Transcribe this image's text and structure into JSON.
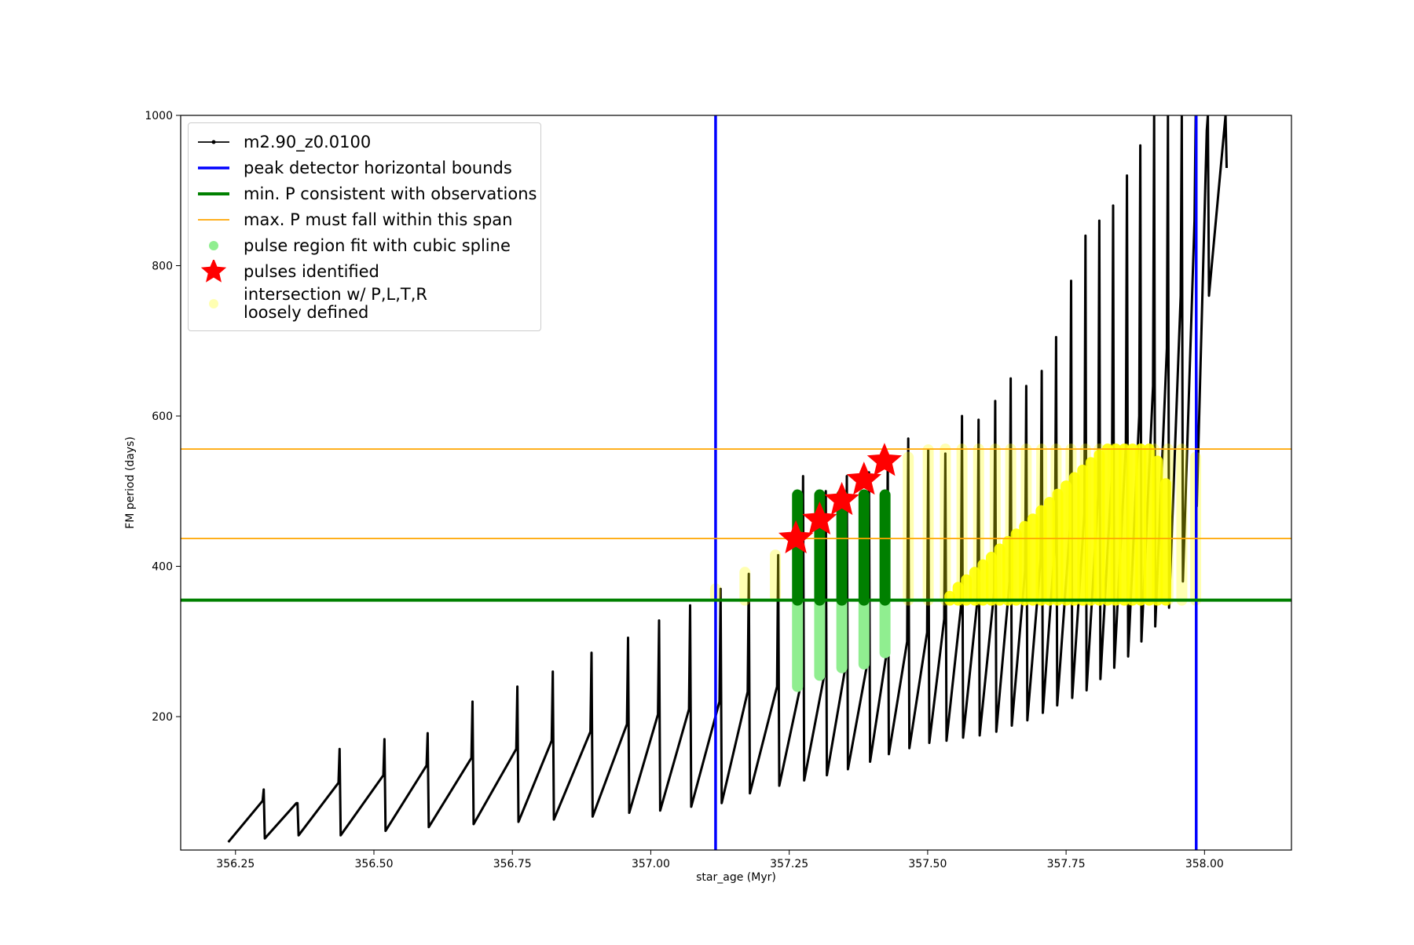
{
  "chart_data": {
    "type": "line",
    "xlabel": "star_age (Myr)",
    "ylabel": "FM period (days)",
    "xlim": [
      356.151,
      358.157
    ],
    "ylim": [
      22.5,
      1000
    ],
    "xticks": [
      356.25,
      {
        "value": 356.5,
        "label": "356.50"
      },
      356.75,
      {
        "value": 357,
        "label": "357.00"
      },
      357.25,
      {
        "value": 357.5,
        "label": "357.50"
      },
      357.75,
      {
        "value": 358,
        "label": "358.00"
      }
    ],
    "yticks": [
      200,
      400,
      600,
      800,
      1000
    ],
    "legend": "upper left",
    "series": [
      {
        "name": "m2.90_z0.0100",
        "kind": "line",
        "color": "#000000",
        "linewidth": 3,
        "x": [
          356.237,
          356.299,
          356.301,
          356.303,
          356.36,
          356.362,
          356.364,
          356.436,
          356.438,
          356.44,
          356.517,
          356.519,
          356.521,
          356.595,
          356.597,
          356.599,
          356.676,
          356.678,
          356.68,
          356.757,
          356.759,
          356.761,
          356.821,
          356.823,
          356.825,
          356.891,
          356.893,
          356.895,
          356.957,
          356.959,
          356.961,
          357.013,
          357.015,
          357.017,
          357.069,
          357.071,
          357.073,
          357.124,
          357.126,
          357.128,
          357.175,
          357.177,
          357.179,
          357.228,
          357.23,
          357.232,
          357.273,
          357.275,
          357.277,
          357.314,
          357.316,
          357.318,
          357.352,
          357.354,
          357.356,
          357.392,
          357.394,
          357.396,
          357.426,
          357.428,
          357.43,
          357.463,
          357.465,
          357.467,
          357.499,
          357.501,
          357.503,
          357.53,
          357.532,
          357.534,
          357.56,
          357.562,
          357.564,
          357.59,
          357.592,
          357.594,
          357.62,
          357.622,
          357.624,
          357.648,
          357.65,
          357.652,
          357.676,
          357.678,
          357.68,
          357.704,
          357.706,
          357.708,
          357.73,
          357.732,
          357.734,
          357.757,
          357.759,
          357.761,
          357.783,
          357.785,
          357.787,
          357.808,
          357.81,
          357.812,
          357.833,
          357.835,
          357.837,
          357.858,
          357.86,
          357.862,
          357.882,
          357.884,
          357.886,
          357.907,
          357.909,
          357.911,
          357.932,
          357.934,
          357.936,
          357.957,
          357.959,
          357.961,
          357.982,
          357.984,
          357.986,
          358.004,
          358.006,
          358.008,
          358.038,
          358.04
        ],
        "values": [
          33,
          88,
          103,
          38,
          85,
          85,
          42,
          112,
          157,
          42,
          122,
          170,
          48,
          135,
          178,
          53,
          145,
          220,
          57,
          157,
          240,
          60,
          168,
          260,
          63,
          180,
          285,
          67,
          190,
          305,
          72,
          203,
          328,
          75,
          210,
          348,
          80,
          220,
          370,
          85,
          233,
          390,
          98,
          240,
          415,
          108,
          250,
          520,
          115,
          258,
          500,
          122,
          268,
          520,
          130,
          275,
          525,
          140,
          285,
          545,
          150,
          300,
          570,
          158,
          312,
          555,
          165,
          330,
          550,
          168,
          345,
          600,
          172,
          355,
          595,
          175,
          365,
          620,
          180,
          380,
          650,
          188,
          395,
          640,
          195,
          410,
          660,
          205,
          430,
          705,
          215,
          450,
          780,
          225,
          470,
          840,
          235,
          495,
          860,
          250,
          525,
          880,
          265,
          560,
          920,
          280,
          600,
          960,
          300,
          640,
          1000,
          320,
          690,
          1000,
          345,
          760,
          1000,
          380,
          860,
          1000,
          480,
          980,
          1000,
          760,
          1000,
          930
        ]
      },
      {
        "name": "peak detector horizontal bounds",
        "kind": "vline",
        "color": "#0000ff",
        "linewidth": 3.5,
        "values": [
          357.117,
          357.985
        ]
      },
      {
        "name": "min. P consistent with observations",
        "kind": "hline",
        "color": "#008000",
        "linewidth": 4,
        "values": [
          355
        ]
      },
      {
        "name": "max. P must fall within this span",
        "kind": "hline",
        "color": "#ffa500",
        "linewidth": 1.8,
        "values": [
          437,
          556
        ]
      },
      {
        "name": "pulse region fit with cubic spline",
        "kind": "columns",
        "color": "#90ee90",
        "opacity": 1,
        "x": [
          357.265,
          357.305,
          357.345,
          357.385,
          357.423
        ],
        "low": [
          240,
          255,
          265,
          270,
          285
        ],
        "high": [
          355,
          355,
          355,
          355,
          355
        ]
      },
      {
        "kind": "columns",
        "color": "#008000",
        "opacity": 1,
        "x": [
          357.265,
          357.305,
          357.345,
          357.385,
          357.423
        ],
        "low": [
          355,
          355,
          355,
          355,
          355
        ],
        "high": [
          495,
          495,
          495,
          495,
          495
        ]
      },
      {
        "name": "pulses identified",
        "kind": "star",
        "color": "#ff0000",
        "x": [
          357.262,
          357.305,
          357.345,
          357.385,
          357.422
        ],
        "values": [
          437,
          462,
          488,
          515,
          540
        ]
      },
      {
        "name": "intersection w/ P,L,T,R\nloosely defined",
        "kind": "columns",
        "color": "#ffff00",
        "opacity": 0.3,
        "x": [
          357.117,
          357.17,
          357.225,
          357.465,
          357.501,
          357.532,
          357.562,
          357.592,
          357.622,
          357.65,
          357.678,
          357.706,
          357.732,
          357.759,
          357.785,
          357.81,
          357.835,
          357.86,
          357.884,
          357.909,
          357.934,
          357.959,
          357.984
        ],
        "low": [
          360,
          355,
          360,
          355,
          355,
          355,
          355,
          355,
          355,
          355,
          355,
          355,
          355,
          355,
          355,
          355,
          355,
          355,
          355,
          355,
          355,
          355,
          355
        ],
        "high": [
          370,
          392,
          415,
          545,
          555,
          556,
          556,
          556,
          556,
          556,
          556,
          556,
          556,
          556,
          556,
          556,
          556,
          556,
          556,
          556,
          556,
          556,
          545
        ]
      },
      {
        "kind": "columns",
        "color": "#ffff00",
        "opacity": 0.9,
        "x": [
          357.54,
          357.555,
          357.57,
          357.585,
          357.6,
          357.615,
          357.63,
          357.645,
          357.66,
          357.675,
          357.69,
          357.705,
          357.72,
          357.735,
          357.75,
          357.765,
          357.78,
          357.795,
          357.81,
          357.825,
          357.84,
          357.855,
          357.87,
          357.885,
          357.9,
          357.915,
          357.93
        ],
        "low": [
          355,
          355,
          355,
          355,
          355,
          355,
          355,
          355,
          355,
          355,
          355,
          355,
          355,
          355,
          355,
          355,
          355,
          355,
          355,
          355,
          355,
          355,
          355,
          355,
          355,
          355,
          355
        ],
        "high": [
          360,
          372,
          382,
          392,
          402,
          412,
          423,
          433,
          443,
          453,
          463,
          474,
          485,
          496,
          507,
          518,
          528,
          538,
          548,
          556,
          556,
          556,
          556,
          556,
          556,
          540,
          510
        ]
      }
    ]
  }
}
